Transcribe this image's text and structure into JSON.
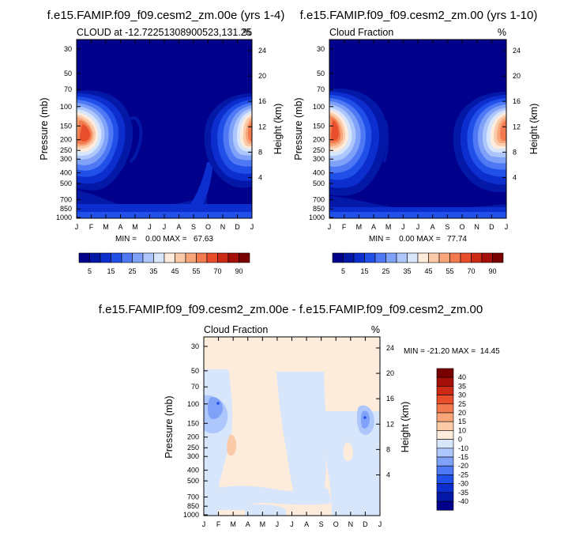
{
  "chart_data": [
    {
      "type": "heatmap",
      "title": "f.e15.FAMIP.f09_f09.cesm2_zm.00e (yrs 1-4)",
      "subtitle_left": "CLOUD at -12.7225130890052​3,131.25",
      "subtitle_left_text": "CLOUD at -12.72251308900523,131.25",
      "subtitle_right": "%",
      "xlabel": "",
      "ylabel": "Pressure (mb)",
      "ylabel_right": "Height (km)",
      "x_ticks": [
        "J",
        "F",
        "M",
        "A",
        "M",
        "J",
        "J",
        "A",
        "S",
        "O",
        "N",
        "D",
        "J"
      ],
      "y_ticks": [
        "30",
        "50",
        "70",
        "100",
        "150",
        "200",
        "250",
        "300",
        "400",
        "500",
        "700",
        "850",
        "1000"
      ],
      "y_ticks_right": [
        "24",
        "20",
        "16",
        "12",
        "8",
        "4"
      ],
      "stats": "MIN =    0.00 MAX =   67.63",
      "colorbar_labels": [
        "5",
        "15",
        "25",
        "35",
        "45",
        "55",
        "70",
        "90"
      ]
    },
    {
      "type": "heatmap",
      "title": "f.e15.FAMIP.f09_f09.cesm2_zm.00 (yrs 1-10)",
      "subtitle_left": "Cloud Fraction",
      "subtitle_right": "%",
      "ylabel": "Pressure (mb)",
      "ylabel_right": "Height (km)",
      "x_ticks": [
        "J",
        "F",
        "M",
        "A",
        "M",
        "J",
        "J",
        "A",
        "S",
        "O",
        "N",
        "D",
        "J"
      ],
      "y_ticks": [
        "30",
        "50",
        "70",
        "100",
        "150",
        "200",
        "250",
        "300",
        "400",
        "500",
        "700",
        "850",
        "1000"
      ],
      "y_ticks_right": [
        "24",
        "20",
        "16",
        "12",
        "8",
        "4"
      ],
      "stats": "MIN =    0.00 MAX =   77.74",
      "colorbar_labels": [
        "5",
        "15",
        "25",
        "35",
        "45",
        "55",
        "70",
        "90"
      ]
    },
    {
      "type": "heatmap",
      "title": "f.e15.FAMIP.f09_f09.cesm2_zm.00e - f.e15.FAMIP.f09_f09.cesm2_zm.00",
      "subtitle_left": "Cloud Fraction",
      "subtitle_right": "%",
      "ylabel": "Pressure (mb)",
      "ylabel_right": "Height (km)",
      "x_ticks": [
        "J",
        "F",
        "M",
        "A",
        "M",
        "J",
        "J",
        "A",
        "S",
        "O",
        "N",
        "D",
        "J"
      ],
      "y_ticks": [
        "30",
        "50",
        "70",
        "100",
        "150",
        "200",
        "250",
        "300",
        "400",
        "500",
        "700",
        "850",
        "1000"
      ],
      "y_ticks_right": [
        "24",
        "20",
        "16",
        "12",
        "8",
        "4"
      ],
      "stats": "MIN = -21.20 MAX =  14.45",
      "colorbar_labels": [
        "40",
        "35",
        "30",
        "25",
        "20",
        "15",
        "10",
        "0",
        "-10",
        "-15",
        "-20",
        "-25",
        "-30",
        "-35",
        "-40"
      ]
    }
  ],
  "colors": {
    "seq": [
      "#00008b",
      "#0418a8",
      "#0d2ecf",
      "#2150e8",
      "#4f78f5",
      "#7fa2f8",
      "#adc6fb",
      "#d8e6fc",
      "#fdebdc",
      "#fbcaa8",
      "#f8a57a",
      "#f37a4f",
      "#e84e2c",
      "#cc2a14",
      "#a50f0a",
      "#7a0000"
    ],
    "div": [
      "#7a0000",
      "#a50f0a",
      "#cc2a14",
      "#e84e2c",
      "#f37a4f",
      "#f8a57a",
      "#fbcaa8",
      "#fdebdc",
      "#d8e6fc",
      "#adc6fb",
      "#7fa2f8",
      "#4f78f5",
      "#2150e8",
      "#0d2ecf",
      "#0418a8",
      "#00008b"
    ]
  }
}
